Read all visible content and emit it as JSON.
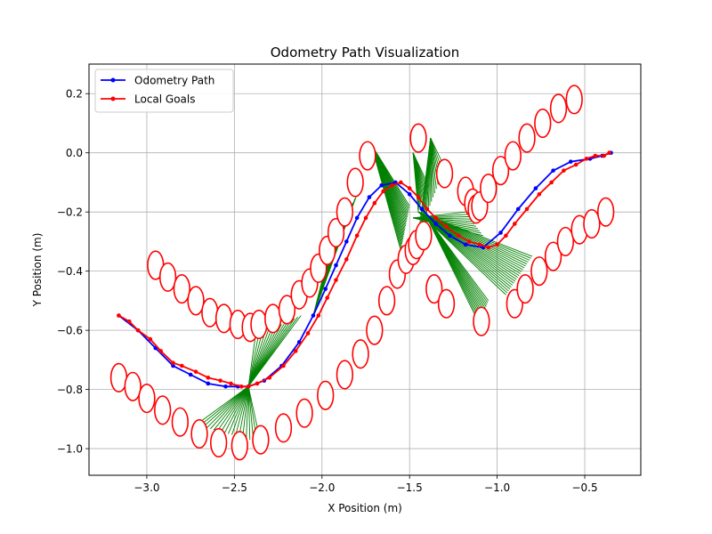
{
  "chart_data": {
    "type": "line",
    "title": "Odometry Path Visualization",
    "xlabel": "X Position (m)",
    "ylabel": "Y Position (m)",
    "xlim": [
      -3.33,
      -0.18
    ],
    "ylim": [
      -1.09,
      0.3
    ],
    "xticks": [
      -3.0,
      -2.5,
      -2.0,
      -1.5,
      -1.0,
      -0.5
    ],
    "xtick_labels": [
      "−3.0",
      "−2.5",
      "−2.0",
      "−1.5",
      "−1.0",
      "−0.5"
    ],
    "yticks": [
      0.2,
      0.0,
      -0.2,
      -0.4,
      -0.6,
      -0.8,
      -1.0
    ],
    "ytick_labels": [
      "0.2",
      "0.0",
      "−0.2",
      "−0.4",
      "−0.6",
      "−0.8",
      "−1.0"
    ],
    "grid": true,
    "legend_position": "upper-left",
    "series": [
      {
        "name": "Odometry Path",
        "color": "#0000ff",
        "marker": "point",
        "x": [
          -3.16,
          -3.05,
          -2.95,
          -2.85,
          -2.75,
          -2.65,
          -2.55,
          -2.48,
          -2.42,
          -2.33,
          -2.23,
          -2.13,
          -2.05,
          -1.98,
          -1.92,
          -1.86,
          -1.8,
          -1.73,
          -1.66,
          -1.58,
          -1.5,
          -1.43,
          -1.35,
          -1.27,
          -1.18,
          -1.08,
          -0.98,
          -0.88,
          -0.78,
          -0.68,
          -0.58,
          -0.47,
          -0.4,
          -0.35
        ],
        "y": [
          -0.55,
          -0.6,
          -0.66,
          -0.72,
          -0.75,
          -0.78,
          -0.79,
          -0.79,
          -0.79,
          -0.77,
          -0.72,
          -0.64,
          -0.55,
          -0.46,
          -0.38,
          -0.3,
          -0.22,
          -0.15,
          -0.11,
          -0.1,
          -0.14,
          -0.19,
          -0.24,
          -0.28,
          -0.31,
          -0.32,
          -0.27,
          -0.19,
          -0.12,
          -0.06,
          -0.03,
          -0.02,
          -0.01,
          0.0
        ]
      },
      {
        "name": "Local Goals",
        "color": "#ff0000",
        "marker": "point",
        "x": [
          -3.16,
          -3.1,
          -3.05,
          -2.98,
          -2.92,
          -2.85,
          -2.8,
          -2.72,
          -2.65,
          -2.58,
          -2.52,
          -2.46,
          -2.42,
          -2.37,
          -2.3,
          -2.22,
          -2.15,
          -2.08,
          -2.02,
          -1.97,
          -1.92,
          -1.86,
          -1.8,
          -1.75,
          -1.7,
          -1.65,
          -1.6,
          -1.55,
          -1.5,
          -1.45,
          -1.4,
          -1.35,
          -1.29,
          -1.22,
          -1.16,
          -1.1,
          -1.05,
          -1.0,
          -0.95,
          -0.9,
          -0.83,
          -0.76,
          -0.69,
          -0.62,
          -0.55,
          -0.49,
          -0.44,
          -0.39,
          -0.36
        ],
        "y": [
          -0.55,
          -0.57,
          -0.6,
          -0.63,
          -0.67,
          -0.71,
          -0.72,
          -0.74,
          -0.76,
          -0.77,
          -0.78,
          -0.79,
          -0.79,
          -0.78,
          -0.76,
          -0.72,
          -0.67,
          -0.61,
          -0.55,
          -0.49,
          -0.43,
          -0.36,
          -0.28,
          -0.22,
          -0.17,
          -0.13,
          -0.11,
          -0.1,
          -0.12,
          -0.15,
          -0.19,
          -0.22,
          -0.25,
          -0.28,
          -0.3,
          -0.31,
          -0.32,
          -0.31,
          -0.28,
          -0.24,
          -0.19,
          -0.14,
          -0.1,
          -0.06,
          -0.04,
          -0.02,
          -0.01,
          -0.01,
          0.0
        ]
      }
    ],
    "ellipses": {
      "color": "#ff0000",
      "width": 0.09,
      "height": 0.095,
      "centers": [
        [
          -2.95,
          -0.38
        ],
        [
          -2.88,
          -0.42
        ],
        [
          -2.8,
          -0.46
        ],
        [
          -2.72,
          -0.5
        ],
        [
          -2.64,
          -0.54
        ],
        [
          -2.56,
          -0.56
        ],
        [
          -2.48,
          -0.58
        ],
        [
          -2.41,
          -0.59
        ],
        [
          -2.36,
          -0.58
        ],
        [
          -2.28,
          -0.56
        ],
        [
          -2.2,
          -0.53
        ],
        [
          -2.13,
          -0.48
        ],
        [
          -2.07,
          -0.44
        ],
        [
          -2.02,
          -0.39
        ],
        [
          -1.97,
          -0.33
        ],
        [
          -1.92,
          -0.27
        ],
        [
          -1.87,
          -0.2
        ],
        [
          -1.81,
          -0.1
        ],
        [
          -1.74,
          -0.01
        ],
        [
          -1.45,
          0.05
        ],
        [
          -1.3,
          -0.07
        ],
        [
          -1.18,
          -0.13
        ],
        [
          -1.14,
          -0.17
        ],
        [
          -1.12,
          -0.19
        ],
        [
          -1.1,
          -0.18
        ],
        [
          -1.05,
          -0.12
        ],
        [
          -0.98,
          -0.06
        ],
        [
          -0.91,
          -0.01
        ],
        [
          -0.83,
          0.05
        ],
        [
          -0.74,
          0.1
        ],
        [
          -0.65,
          0.15
        ],
        [
          -0.56,
          0.18
        ],
        [
          -3.16,
          -0.76
        ],
        [
          -3.08,
          -0.79
        ],
        [
          -3.0,
          -0.83
        ],
        [
          -2.91,
          -0.87
        ],
        [
          -2.81,
          -0.91
        ],
        [
          -2.7,
          -0.95
        ],
        [
          -2.59,
          -0.98
        ],
        [
          -2.47,
          -0.99
        ],
        [
          -2.35,
          -0.97
        ],
        [
          -2.22,
          -0.93
        ],
        [
          -2.1,
          -0.88
        ],
        [
          -1.98,
          -0.82
        ],
        [
          -1.87,
          -0.75
        ],
        [
          -1.78,
          -0.68
        ],
        [
          -1.7,
          -0.6
        ],
        [
          -1.63,
          -0.5
        ],
        [
          -1.57,
          -0.41
        ],
        [
          -1.52,
          -0.36
        ],
        [
          -1.48,
          -0.33
        ],
        [
          -1.46,
          -0.31
        ],
        [
          -1.42,
          -0.28
        ],
        [
          -1.36,
          -0.46
        ],
        [
          -1.29,
          -0.51
        ],
        [
          -1.09,
          -0.57
        ],
        [
          -0.9,
          -0.51
        ],
        [
          -0.84,
          -0.46
        ],
        [
          -0.76,
          -0.4
        ],
        [
          -0.68,
          -0.35
        ],
        [
          -0.61,
          -0.3
        ],
        [
          -0.53,
          -0.26
        ],
        [
          -0.46,
          -0.24
        ],
        [
          -0.38,
          -0.2
        ]
      ]
    },
    "connectors": {
      "color": "#008000",
      "fans": [
        {
          "hub": [
            -2.42,
            -0.79
          ],
          "from": [
            -2.72,
            -0.92
          ],
          "to": [
            -2.35,
            -0.98
          ],
          "steps": 18
        },
        {
          "hub": [
            -2.42,
            -0.79
          ],
          "from": [
            -2.38,
            -0.62
          ],
          "to": [
            -2.12,
            -0.55
          ],
          "steps": 14
        },
        {
          "hub": [
            -2.05,
            -0.55
          ],
          "from": [
            -1.96,
            -0.34
          ],
          "to": [
            -1.8,
            -0.14
          ],
          "steps": 14
        },
        {
          "hub": [
            -1.72,
            0.03
          ],
          "from": [
            -1.5,
            -0.18
          ],
          "to": [
            -1.55,
            -0.33
          ],
          "steps": 20
        },
        {
          "hub": [
            -1.48,
            0.0
          ],
          "from": [
            -1.45,
            -0.2
          ],
          "to": [
            -1.4,
            -0.1
          ],
          "steps": 12
        },
        {
          "hub": [
            -1.38,
            0.05
          ],
          "from": [
            -1.45,
            -0.28
          ],
          "to": [
            -1.3,
            -0.05
          ],
          "steps": 16
        },
        {
          "hub": [
            -1.45,
            -0.2
          ],
          "from": [
            -0.95,
            -0.48
          ],
          "to": [
            -0.8,
            -0.35
          ],
          "steps": 20
        },
        {
          "hub": [
            -1.4,
            -0.22
          ],
          "from": [
            -1.1,
            -0.58
          ],
          "to": [
            -1.05,
            -0.5
          ],
          "steps": 12
        },
        {
          "hub": [
            -1.48,
            -0.22
          ],
          "from": [
            -1.18,
            -0.2
          ],
          "to": [
            -1.08,
            -0.28
          ],
          "steps": 10
        }
      ]
    }
  }
}
